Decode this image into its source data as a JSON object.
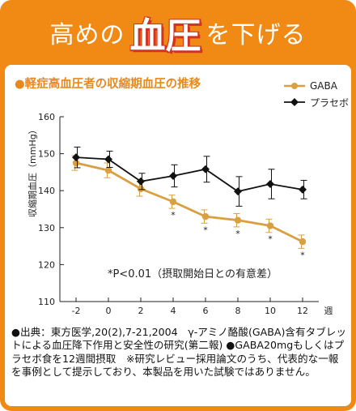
{
  "header": {
    "title_pre": "高めの",
    "title_em": "血圧",
    "title_post": "を下げる"
  },
  "subtitle": "●軽症高血圧者の収縮期血圧の推移",
  "footnote": "●出典：東方医学,20(2),7-21,2004　γ-アミノ酪酸(GABA)含有タブレットによる血圧降下作用と安全性の研究(第二報) ●GABA20mgもしくはプラセボ食を12週間摂取　※研究レビュー採用論文のうち、代表的な一報を事例として提示しており、本製品を用いた試験ではありません。",
  "chart_data": {
    "type": "line",
    "title": "軽症高血圧者の収縮期血圧の推移",
    "xlabel": "週",
    "ylabel": "収縮期血圧（mmHg）",
    "x": [
      -2,
      0,
      2,
      4,
      6,
      8,
      10,
      12
    ],
    "xticks": [
      "-2",
      "0",
      "2",
      "4",
      "6",
      "8",
      "10",
      "12"
    ],
    "ylim": [
      110,
      160
    ],
    "yticks": [
      110,
      120,
      130,
      140,
      150,
      160
    ],
    "grid": false,
    "legend_position": "top-right",
    "series": [
      {
        "name": "GABA",
        "color": "#d9a042",
        "marker": "circle",
        "values": [
          147.5,
          145.5,
          140.5,
          137.0,
          133.0,
          132.0,
          130.5,
          126.2
        ],
        "errors": [
          2.0,
          2.0,
          2.0,
          1.8,
          1.8,
          1.8,
          1.8,
          1.8
        ],
        "significant": [
          false,
          false,
          false,
          true,
          true,
          true,
          true,
          true
        ]
      },
      {
        "name": "プラセボ",
        "color": "#111111",
        "marker": "diamond",
        "values": [
          149.0,
          148.5,
          142.5,
          144.0,
          145.8,
          139.8,
          141.8,
          140.3
        ],
        "errors": [
          2.8,
          2.2,
          2.2,
          3.0,
          3.5,
          4.0,
          4.0,
          2.5
        ],
        "significant": [
          false,
          false,
          false,
          false,
          false,
          false,
          false,
          false
        ]
      }
    ],
    "significance_mark": "*",
    "annotation": "*P<0.01（摂取開始日との有意差）"
  }
}
